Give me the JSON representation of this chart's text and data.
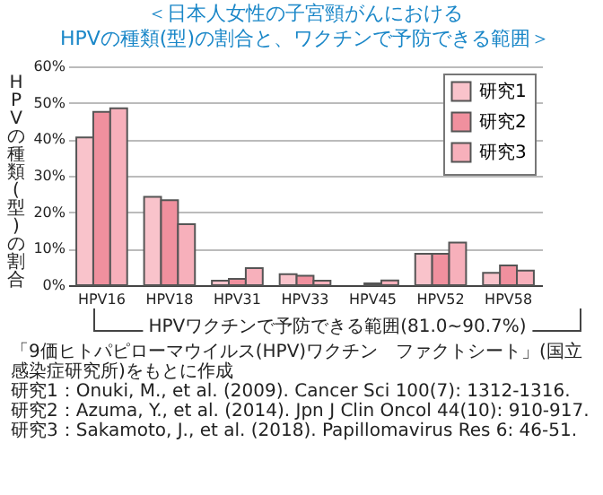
{
  "chart_data": {
    "type": "bar",
    "title": "＜日本人女性の子宮頸がんにおける\nHPVの種類(型)の割合と、ワクチンで予防できる範囲＞",
    "ylabel": "HPVの種類(型)の割合",
    "categories": [
      "HPV16",
      "HPV18",
      "HPV31",
      "HPV33",
      "HPV45",
      "HPV52",
      "HPV58"
    ],
    "series": [
      {
        "name": "研究1",
        "color": "#f9c3cb",
        "values": [
          40.5,
          24.2,
          1.2,
          3.0,
          null,
          8.6,
          3.4
        ]
      },
      {
        "name": "研究2",
        "color": "#f0909e",
        "values": [
          47.5,
          23.3,
          1.7,
          2.6,
          0.5,
          8.6,
          5.4
        ]
      },
      {
        "name": "研究3",
        "color": "#f7b0bb",
        "values": [
          48.5,
          16.7,
          4.7,
          1.2,
          1.3,
          11.7,
          4.0
        ]
      }
    ],
    "ylim": [
      0,
      60
    ],
    "yticks": [
      {
        "value": 0,
        "label": "0%"
      },
      {
        "value": 10,
        "label": "10%"
      },
      {
        "value": 20,
        "label": "20%"
      },
      {
        "value": 30,
        "label": "30%"
      },
      {
        "value": 40,
        "label": "40%"
      },
      {
        "value": 50,
        "label": "50%"
      },
      {
        "value": 60,
        "label": "60%"
      }
    ],
    "grid": "y",
    "legend": "top right",
    "annotations": [
      "HPVワクチンで予防できる範囲(81.0~90.7%)",
      "「9価ヒトパピローマウイルス(HPV)ワクチン　ファクトシート」(国立感染症研究所)をもとに作成",
      "研究1：Onuki, M., et al. (2009). Cancer Sci 100(7): 1312-1316.",
      "研究2：Azuma, Y., et al. (2014). Jpn J Clin Oncol 44(10): 910-917.",
      "研究3：Sakamoto, J., et al. (2018). Papillomavirus Res 6: 46-51."
    ]
  }
}
